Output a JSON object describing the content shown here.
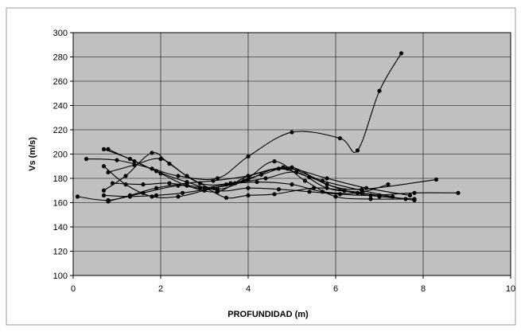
{
  "chart_data": {
    "type": "line",
    "title": "",
    "xlabel": "PROFUNDIDAD (m)",
    "ylabel": "Vs (m/s)",
    "xlim": [
      0,
      10
    ],
    "ylim": [
      100,
      300
    ],
    "xticks": [
      0,
      2,
      4,
      6,
      8,
      10
    ],
    "yticks": [
      100,
      120,
      140,
      160,
      180,
      200,
      220,
      240,
      260,
      280,
      300
    ],
    "grid": true,
    "legend": "none",
    "plot_background": "#c0c0c0",
    "line_color": "#000000",
    "series": [
      {
        "x": [
          0.3,
          1.0,
          1.8,
          2.4,
          3.3,
          4.0,
          5.0,
          6.1,
          6.5,
          7.0,
          7.5
        ],
        "y": [
          196,
          195,
          188,
          182,
          180,
          198,
          218,
          213,
          203,
          252,
          283
        ]
      },
      {
        "x": [
          0.7,
          1.3,
          1.9,
          2.6,
          3.3,
          4.0,
          4.8,
          5.7,
          6.6,
          7.3
        ],
        "y": [
          204,
          196,
          186,
          177,
          171,
          179,
          189,
          178,
          170,
          165
        ]
      },
      {
        "x": [
          0.8,
          1.4,
          2.0,
          2.6,
          3.3,
          4.0,
          4.9,
          5.8,
          6.7,
          7.7
        ],
        "y": [
          204,
          194,
          184,
          174,
          169,
          182,
          188,
          180,
          172,
          166
        ]
      },
      {
        "x": [
          0.7,
          1.2,
          1.8,
          2.4,
          3.0,
          3.7,
          4.4,
          5.1,
          5.8,
          6.6,
          7.8
        ],
        "y": [
          190,
          175,
          165,
          165,
          170,
          176,
          180,
          185,
          172,
          168,
          162
        ]
      },
      {
        "x": [
          0.8,
          1.3,
          1.9,
          2.6,
          3.2,
          4.0,
          4.7,
          5.4,
          6.2,
          7.0,
          7.8
        ],
        "y": [
          161,
          166,
          172,
          176,
          178,
          182,
          188,
          181,
          170,
          165,
          163
        ]
      },
      {
        "x": [
          0.1,
          0.8,
          1.6,
          2.4,
          3.0,
          3.5,
          4.0,
          4.6,
          5.5,
          6.2,
          7.0
        ],
        "y": [
          165,
          162,
          168,
          174,
          172,
          164,
          166,
          167,
          172,
          170,
          166
        ]
      },
      {
        "x": [
          0.7,
          1.2,
          1.8,
          2.2,
          2.9,
          3.6,
          4.3,
          5.0,
          5.8,
          6.6,
          8.3
        ],
        "y": [
          170,
          182,
          201,
          192,
          176,
          176,
          183,
          189,
          175,
          171,
          179
        ]
      },
      {
        "x": [
          0.9,
          1.6,
          2.2,
          2.9,
          3.5,
          4.2,
          5.0,
          5.7,
          6.5,
          7.2
        ],
        "y": [
          176,
          175,
          176,
          172,
          175,
          177,
          175,
          169,
          168,
          175
        ]
      },
      {
        "x": [
          0.8,
          1.4,
          2.0,
          2.6,
          3.3,
          4.0,
          4.7,
          5.4,
          6.1,
          6.8,
          7.8,
          8.8
        ],
        "y": [
          185,
          191,
          196,
          182,
          170,
          172,
          171,
          169,
          167,
          166,
          168,
          168
        ]
      },
      {
        "x": [
          0.7,
          1.3,
          1.9,
          2.5,
          3.2,
          3.9,
          4.6,
          5.3,
          6.0,
          6.8,
          7.6
        ],
        "y": [
          166,
          165,
          166,
          168,
          172,
          178,
          194,
          178,
          165,
          163,
          163
        ]
      }
    ]
  }
}
